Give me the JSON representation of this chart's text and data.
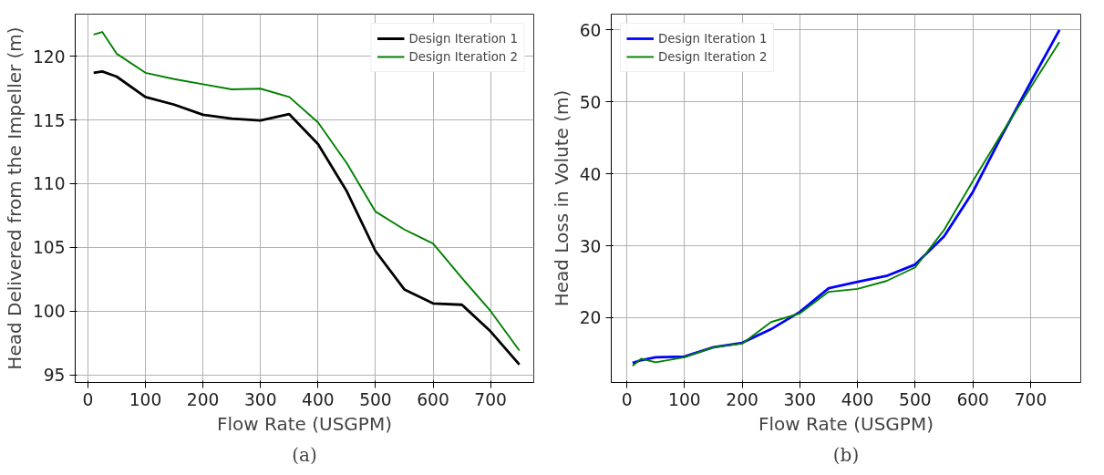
{
  "chart_data": [
    {
      "type": "line",
      "xlabel": "Flow Rate (USGPM)",
      "ylabel": "Head Delivered from the Impeller (m)",
      "annotations": [
        "(a)"
      ],
      "x": [
        10,
        25,
        50,
        100,
        150,
        200,
        250,
        300,
        350,
        400,
        450,
        500,
        550,
        600,
        650,
        700,
        750
      ],
      "series": [
        {
          "name": "Design Iteration 1",
          "color": "#000000",
          "values": [
            118.7,
            118.8,
            118.4,
            116.8,
            116.2,
            115.4,
            115.1,
            114.95,
            115.45,
            113.1,
            109.4,
            104.7,
            101.7,
            100.6,
            100.5,
            98.4,
            95.8
          ]
        },
        {
          "name": "Design Iteration 2",
          "color": "#008000",
          "values": [
            121.7,
            121.9,
            120.2,
            118.7,
            118.2,
            117.8,
            117.4,
            117.45,
            116.8,
            114.8,
            111.6,
            107.8,
            106.4,
            105.3,
            102.6,
            100.0,
            96.9
          ]
        }
      ],
      "xlim": [
        -22,
        775
      ],
      "ylim": [
        94.4,
        123.3
      ],
      "xticks": [
        0,
        100,
        200,
        300,
        400,
        500,
        600,
        700
      ],
      "yticks": [
        95,
        100,
        105,
        110,
        115,
        120
      ],
      "grid": true,
      "legend": "top right"
    },
    {
      "type": "line",
      "xlabel": "Flow Rate (USGPM)",
      "ylabel": "Head Loss in Volute (m)",
      "annotations": [
        "(b)"
      ],
      "x": [
        10,
        25,
        50,
        100,
        150,
        200,
        250,
        300,
        350,
        400,
        450,
        500,
        550,
        600,
        650,
        700,
        750
      ],
      "series": [
        {
          "name": "Design Iteration 1",
          "color": "#0000ff",
          "values": [
            13.7,
            14.1,
            14.5,
            14.6,
            15.9,
            16.5,
            18.4,
            20.8,
            24.1,
            25.0,
            25.8,
            27.4,
            31.3,
            37.5,
            45.3,
            52.7,
            60.0
          ]
        },
        {
          "name": "Design Iteration 2",
          "color": "#008000",
          "values": [
            13.3,
            14.3,
            13.8,
            14.5,
            15.9,
            16.4,
            19.4,
            20.6,
            23.6,
            24.0,
            25.1,
            27.0,
            32.2,
            39.0,
            45.6,
            52.0,
            58.3
          ]
        }
      ],
      "xlim": [
        -27,
        787
      ],
      "ylim": [
        11.0,
        62.2
      ],
      "xticks": [
        0,
        100,
        200,
        300,
        400,
        500,
        600,
        700
      ],
      "yticks": [
        20,
        30,
        40,
        50,
        60
      ],
      "grid": true,
      "legend": "top left"
    }
  ]
}
